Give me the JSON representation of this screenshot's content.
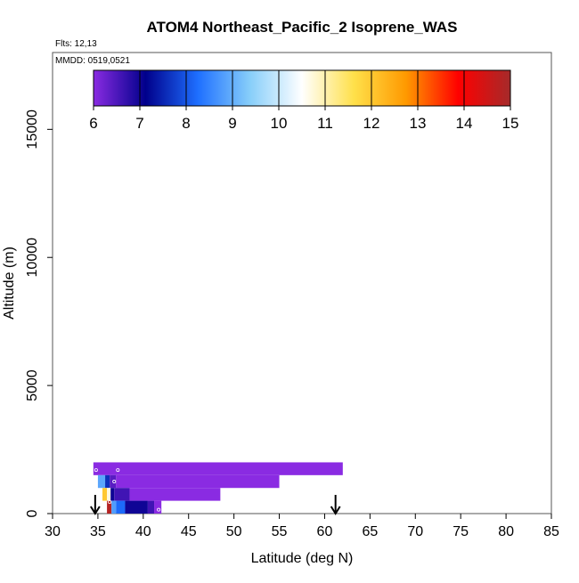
{
  "title": "ATOM4 Northeast_Pacific_2 Isoprene_WAS",
  "flights_label": "Flts: 12,13",
  "dates_label": "MMDD: 0519,0521",
  "chart_data": {
    "type": "heatmap",
    "title": "ATOM4 Northeast_Pacific_2 Isoprene_WAS",
    "xlabel": "Latitude (deg N)",
    "ylabel": "Altitude (m)",
    "xlim": [
      30,
      85
    ],
    "ylim": [
      0,
      18000
    ],
    "x_ticks": [
      30,
      35,
      40,
      45,
      50,
      55,
      60,
      65,
      70,
      75,
      80,
      85
    ],
    "y_ticks": [
      0,
      5000,
      10000,
      15000
    ],
    "grid": false,
    "colorbar": {
      "range": [
        6,
        15
      ],
      "ticks": [
        6,
        7,
        8,
        9,
        10,
        11,
        12,
        13,
        14,
        15
      ],
      "placement": "top-inside",
      "colors": [
        "#8a2be2",
        "#00008b",
        "#1e6fff",
        "#87cefa",
        "#ffffff",
        "#ffe04a",
        "#ff9900",
        "#ff0000",
        "#a52a2a"
      ]
    },
    "layers": [
      {
        "alt_min": 1500,
        "alt_max": 2000,
        "lat_min": 34.5,
        "lat_max": 62.0,
        "cells": [
          {
            "lat_min": 34.5,
            "lat_max": 62.0,
            "value": 6.0
          }
        ]
      },
      {
        "alt_min": 1000,
        "alt_max": 1500,
        "lat_min": 35.0,
        "lat_max": 55.0,
        "cells": [
          {
            "lat_min": 35.0,
            "lat_max": 35.8,
            "value": 8.9
          },
          {
            "lat_min": 35.8,
            "lat_max": 36.3,
            "value": 7.6
          },
          {
            "lat_min": 36.3,
            "lat_max": 37.0,
            "value": 6.4
          },
          {
            "lat_min": 37.0,
            "lat_max": 55.0,
            "value": 6.0
          }
        ]
      },
      {
        "alt_min": 500,
        "alt_max": 1000,
        "lat_min": 35.5,
        "lat_max": 48.5,
        "cells": [
          {
            "lat_min": 35.5,
            "lat_max": 36.0,
            "value": 12.0
          },
          {
            "lat_min": 36.0,
            "lat_max": 36.4,
            "value": 10.7
          },
          {
            "lat_min": 36.4,
            "lat_max": 36.8,
            "value": 7.0
          },
          {
            "lat_min": 36.8,
            "lat_max": 38.5,
            "value": 6.6
          },
          {
            "lat_min": 38.5,
            "lat_max": 48.5,
            "value": 6.0
          }
        ]
      },
      {
        "alt_min": 0,
        "alt_max": 500,
        "lat_min": 36.0,
        "lat_max": 42.0,
        "cells": [
          {
            "lat_min": 36.0,
            "lat_max": 36.5,
            "value": 14.8
          },
          {
            "lat_min": 36.5,
            "lat_max": 37.0,
            "value": 8.8
          },
          {
            "lat_min": 37.0,
            "lat_max": 38.0,
            "value": 8.2
          },
          {
            "lat_min": 38.0,
            "lat_max": 40.5,
            "value": 7.0
          },
          {
            "lat_min": 40.5,
            "lat_max": 41.2,
            "value": 6.6
          },
          {
            "lat_min": 41.2,
            "lat_max": 42.0,
            "value": 6.0
          }
        ]
      }
    ],
    "sample_points": [
      {
        "lat": 34.8,
        "alt": 1700
      },
      {
        "lat": 37.2,
        "alt": 1700
      },
      {
        "lat": 36.8,
        "alt": 1250
      },
      {
        "lat": 36.3,
        "alt": 450
      },
      {
        "lat": 41.7,
        "alt": 150
      }
    ],
    "arrows": [
      {
        "lat": 34.7
      },
      {
        "lat": 61.2
      }
    ]
  }
}
